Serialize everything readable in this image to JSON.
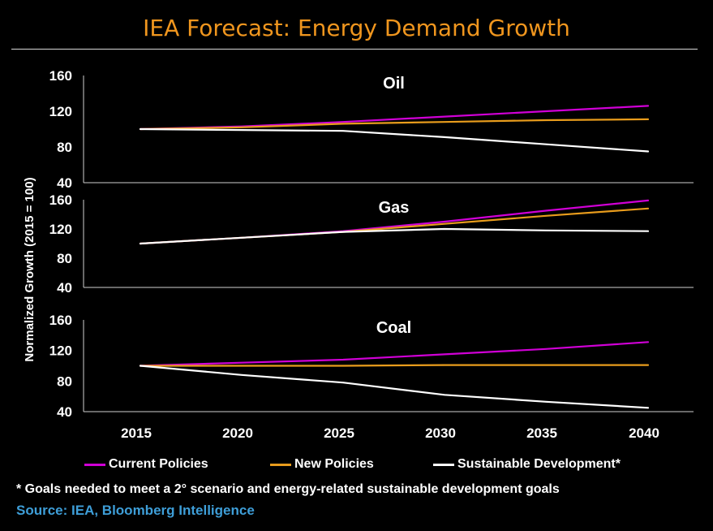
{
  "title": "IEA Forecast: Energy Demand Growth",
  "colors": {
    "current": "#d000d6",
    "new": "#e89c1c",
    "sustainable": "#ffffff",
    "title": "#f0961e",
    "source": "#3e9ed8"
  },
  "chart_data": {
    "type": "line",
    "ylabel": "Normalized Growth (2015 = 100)",
    "x": [
      2015,
      2020,
      2025,
      2030,
      2035,
      2040
    ],
    "x_tick_labels": [
      "2015",
      "2020",
      "2025",
      "2030",
      "2035",
      "2040"
    ],
    "y_tick_labels": [
      "160",
      "120",
      "80",
      "40"
    ],
    "ylim": [
      40,
      160
    ],
    "panels": [
      {
        "name": "Oil",
        "series": [
          {
            "name": "Current Policies",
            "values": [
              100,
              103,
              108,
              114,
              120,
              126
            ]
          },
          {
            "name": "New Policies",
            "values": [
              100,
              102,
              106,
              108,
              110,
              111
            ]
          },
          {
            "name": "Sustainable Development*",
            "values": [
              100,
              99,
              98,
              91,
              83,
              75
            ]
          }
        ]
      },
      {
        "name": "Gas",
        "series": [
          {
            "name": "Current Policies",
            "values": [
              100,
              108,
              117,
              130,
              145,
              159
            ]
          },
          {
            "name": "New Policies",
            "values": [
              100,
              108,
              116,
              127,
              138,
              148
            ]
          },
          {
            "name": "Sustainable Development*",
            "values": [
              100,
              108,
              116,
              120,
              118,
              117
            ]
          }
        ]
      },
      {
        "name": "Coal",
        "series": [
          {
            "name": "Current Policies",
            "values": [
              100,
              104,
              108,
              115,
              122,
              131
            ]
          },
          {
            "name": "New Policies",
            "values": [
              100,
              100,
              100,
              101,
              101,
              101
            ]
          },
          {
            "name": "Sustainable Development*",
            "values": [
              100,
              88,
              78,
              62,
              53,
              45
            ]
          }
        ]
      }
    ]
  },
  "legend": [
    {
      "label": "Current Policies",
      "color_key": "current"
    },
    {
      "label": "New Policies",
      "color_key": "new"
    },
    {
      "label": "Sustainable Development*",
      "color_key": "sustainable"
    }
  ],
  "footnote": "* Goals needed to meet a 2° scenario and energy-related sustainable development goals",
  "source": "Source: IEA, Bloomberg Intelligence"
}
